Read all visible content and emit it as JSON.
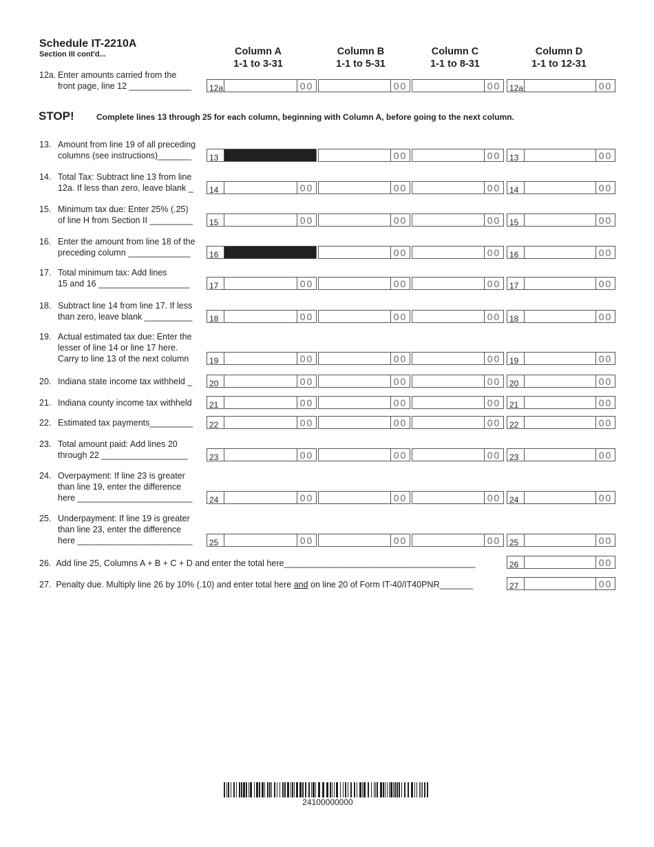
{
  "header": {
    "title": "Schedule IT-2210A",
    "subtitle": "Section III cont'd...",
    "columns": [
      {
        "name": "Column A",
        "range": "1-1 to 3-31"
      },
      {
        "name": "Column B",
        "range": "1-1 to 5-31"
      },
      {
        "name": "Column C",
        "range": "1-1 to 8-31"
      },
      {
        "name": "Column D",
        "range": "1-1 to 12-31"
      }
    ]
  },
  "stop": {
    "label": "STOP!",
    "message": "Complete lines 13 through 25 for each column,  beginning with Column A,  before going to the next column."
  },
  "cents_placeholder": "00",
  "rows": [
    {
      "num": "12a.",
      "lines": [
        "Enter amounts carried from the",
        "front page, line 12 _____________"
      ],
      "tag": "12a",
      "shadeA": false
    },
    {
      "num": "13.",
      "lines": [
        "Amount  from line 19 of all preceding",
        "columns (see instructions)_______"
      ],
      "tag": "13",
      "shadeA": true
    },
    {
      "num": "14.",
      "lines": [
        "Total Tax: Subtract line 13 from line",
        "12a. If less than zero, leave blank _"
      ],
      "tag": "14",
      "shadeA": false
    },
    {
      "num": "15.",
      "lines": [
        "Minimum tax due: Enter 25% (.25)",
        "of line H from Section II _________"
      ],
      "tag": "15",
      "shadeA": false
    },
    {
      "num": "16.",
      "lines": [
        "Enter the amount from line 18 of the",
        "preceding column _____________"
      ],
      "tag": "16",
      "shadeA": true
    },
    {
      "num": "17.",
      "lines": [
        "Total minimum tax: Add lines",
        "15 and 16 ___________________"
      ],
      "tag": "17",
      "shadeA": false
    },
    {
      "num": "18.",
      "lines": [
        "Subtract line 14 from line 17. If less",
        "than zero, leave blank __________"
      ],
      "tag": "18",
      "shadeA": false
    },
    {
      "num": "19.",
      "lines": [
        "Actual estimated tax due: Enter the",
        "lesser of line 14 or line 17 here.",
        "Carry to line 13 of the next column"
      ],
      "tag": "19",
      "shadeA": false
    },
    {
      "num": "20.",
      "lines": [
        "Indiana state income tax withheld _"
      ],
      "tag": "20",
      "shadeA": false
    },
    {
      "num": "21.",
      "lines": [
        "Indiana county income tax withheld"
      ],
      "tag": "21",
      "shadeA": false
    },
    {
      "num": "22.",
      "lines": [
        "Estimated tax payments_________"
      ],
      "tag": "22",
      "shadeA": false
    },
    {
      "num": "23.",
      "lines": [
        "Total amount paid: Add lines 20",
        "through 22 __________________"
      ],
      "tag": "23",
      "shadeA": false
    },
    {
      "num": "24.",
      "lines": [
        "Overpayment: If line 23 is greater",
        "than line 19, enter the difference",
        "here ________________________"
      ],
      "tag": "24",
      "shadeA": false
    },
    {
      "num": "25.",
      "lines": [
        "Underpayment: If line 19 is greater",
        "than line 23, enter the difference",
        "here ________________________"
      ],
      "tag": "25",
      "shadeA": false
    }
  ],
  "totals": [
    {
      "num": "26.",
      "text": "Add line 25, Columns A + B +  C + D and enter the total here________________________________________",
      "tag": "26"
    },
    {
      "num": "27.",
      "text_before": "Penalty due. Multiply line 26 by 10% (.10) and enter total here ",
      "text_underlined": "and",
      "text_after": " on line 20 of Form IT-40/IT40PNR_______",
      "tag": "27"
    }
  ],
  "barcode": {
    "number": "24100000000"
  }
}
